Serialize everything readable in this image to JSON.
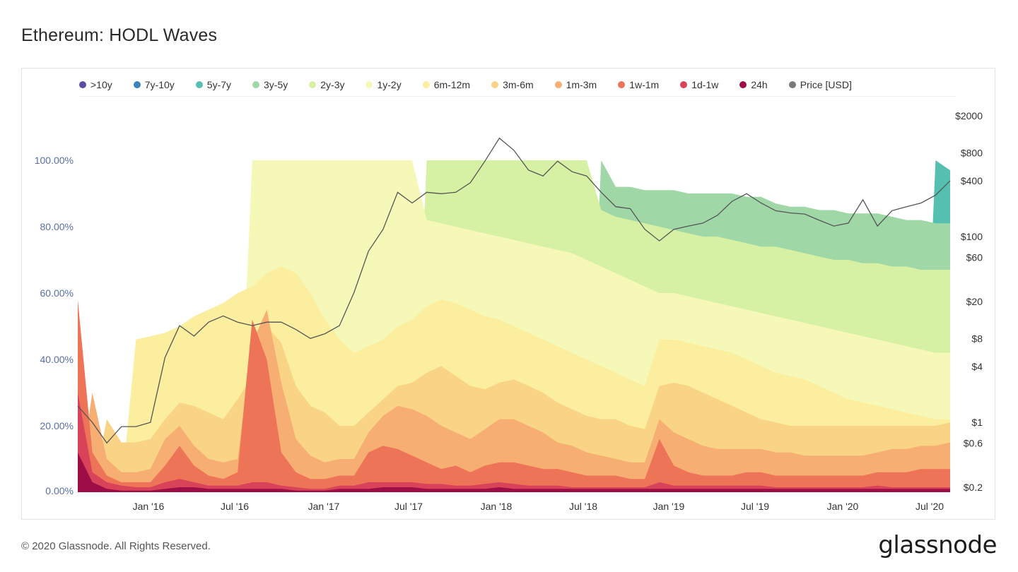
{
  "page": {
    "title": "Ethereum: HODL Waves",
    "copyright": "© 2020 Glassnode. All Rights Reserved.",
    "logo_text": "glassnode",
    "watermark": "glassnode"
  },
  "legend": [
    {
      "label": ">10y",
      "color": "#5b4ea2"
    },
    {
      "label": "7y-10y",
      "color": "#3a82bd"
    },
    {
      "label": "5y-7y",
      "color": "#55c0b0"
    },
    {
      "label": "3y-5y",
      "color": "#9fd8a6"
    },
    {
      "label": "2y-3y",
      "color": "#d6f0a4"
    },
    {
      "label": "1y-2y",
      "color": "#f6f8b8"
    },
    {
      "label": "6m-12m",
      "color": "#fbee9e"
    },
    {
      "label": "3m-6m",
      "color": "#f9d386"
    },
    {
      "label": "1m-3m",
      "color": "#f7ae72"
    },
    {
      "label": "1w-1m",
      "color": "#ee7458"
    },
    {
      "label": "1d-1w",
      "color": "#d9435a"
    },
    {
      "label": "24h",
      "color": "#9e0e46"
    },
    {
      "label": "Price [USD]",
      "color": "#7a7a7a"
    }
  ],
  "chart_data": {
    "type": "area",
    "stacked": true,
    "normalized_percent": true,
    "x_ticks": [
      "Jan '16",
      "Jul '16",
      "Jan '17",
      "Jul '17",
      "Jan '18",
      "Jul '18",
      "Jan '19",
      "Jul '19",
      "Jan '20",
      "Jul '20"
    ],
    "y_left_ticks": [
      "0.00%",
      "20.00%",
      "40.00%",
      "60.00%",
      "80.00%",
      "100.00%"
    ],
    "y_right_ticks": [
      "$0.2",
      "$0.6",
      "$1",
      "$4",
      "$8",
      "$20",
      "$60",
      "$100",
      "$400",
      "$800",
      "$2000"
    ],
    "x": [
      "2015-08",
      "2015-09",
      "2015-10",
      "2015-11",
      "2015-12",
      "2016-01",
      "2016-02",
      "2016-03",
      "2016-04",
      "2016-05",
      "2016-06",
      "2016-07",
      "2016-08",
      "2016-09",
      "2016-10",
      "2016-11",
      "2016-12",
      "2017-01",
      "2017-02",
      "2017-03",
      "2017-04",
      "2017-05",
      "2017-06",
      "2017-07",
      "2017-08",
      "2017-09",
      "2017-10",
      "2017-11",
      "2017-12",
      "2018-01",
      "2018-02",
      "2018-03",
      "2018-04",
      "2018-05",
      "2018-06",
      "2018-07",
      "2018-08",
      "2018-09",
      "2018-10",
      "2018-11",
      "2018-12",
      "2019-01",
      "2019-02",
      "2019-03",
      "2019-04",
      "2019-05",
      "2019-06",
      "2019-07",
      "2019-08",
      "2019-09",
      "2019-10",
      "2019-11",
      "2019-12",
      "2020-01",
      "2020-02",
      "2020-03",
      "2020-04",
      "2020-05",
      "2020-06",
      "2020-07",
      "2020-08"
    ],
    "series": [
      {
        "name": "24h",
        "values": [
          12,
          3,
          1,
          0.5,
          0.5,
          0.5,
          1,
          1.5,
          1.5,
          1,
          1,
          1,
          1,
          1,
          1,
          0.5,
          0.5,
          0.5,
          1,
          1,
          1,
          1.5,
          1.5,
          1.5,
          1,
          1,
          1,
          1,
          1,
          1.5,
          1,
          1,
          1,
          1,
          1,
          1,
          1,
          1,
          1,
          1,
          1,
          1,
          1,
          1,
          1,
          1,
          1,
          1,
          1,
          1,
          1,
          1,
          1,
          1,
          1,
          1,
          1,
          1,
          1,
          1,
          1
        ]
      },
      {
        "name": "1d-1w",
        "values": [
          30,
          6,
          3,
          2,
          1.5,
          1.5,
          3,
          4,
          3,
          2,
          2,
          2,
          3,
          3,
          2,
          1.5,
          1,
          1,
          2,
          2,
          3,
          3,
          3,
          3,
          2.5,
          2.5,
          2,
          2,
          2.5,
          3,
          2.5,
          2,
          2,
          2,
          1.5,
          1.5,
          1.5,
          1.5,
          1.5,
          1.5,
          3,
          2,
          2,
          2,
          2,
          2,
          2,
          2,
          1.5,
          1.5,
          1.5,
          1.5,
          1.5,
          1.5,
          1.5,
          2,
          1.5,
          1.5,
          1.5,
          1.5,
          1.5
        ]
      },
      {
        "name": "1w-1m",
        "values": [
          58,
          12,
          5,
          3,
          3,
          3,
          8,
          14,
          8,
          5,
          4,
          6,
          52,
          40,
          12,
          6,
          4,
          4,
          5,
          5,
          12,
          14,
          13,
          11,
          9,
          7,
          8,
          6,
          8,
          9,
          9,
          8,
          7,
          7,
          6,
          5,
          5,
          5,
          4,
          4,
          16,
          8,
          6,
          5,
          5,
          5,
          6,
          6,
          5,
          5,
          5,
          5,
          5,
          5,
          5,
          6,
          6,
          6,
          7,
          7,
          7
        ]
      },
      {
        "name": "1m-3m",
        "values": [
          0,
          30,
          10,
          6,
          6,
          7,
          16,
          20,
          14,
          10,
          9,
          10,
          45,
          55,
          33,
          16,
          11,
          9,
          10,
          10,
          18,
          23,
          26,
          25,
          23,
          20,
          18,
          16,
          19,
          22,
          22,
          20,
          18,
          15,
          14,
          12,
          11,
          10,
          9,
          9,
          22,
          18,
          16,
          14,
          13,
          13,
          13,
          13,
          12,
          12,
          11,
          11,
          11,
          11,
          11,
          12,
          13,
          13,
          14,
          14,
          15
        ]
      },
      {
        "name": "3m-6m",
        "values": [
          0,
          0,
          22,
          15,
          15,
          16,
          22,
          27,
          26,
          24,
          22,
          28,
          35,
          50,
          45,
          32,
          26,
          24,
          20,
          20,
          24,
          28,
          32,
          33,
          36,
          38,
          35,
          32,
          31,
          33,
          34,
          32,
          30,
          27,
          25,
          23,
          22,
          22,
          20,
          19,
          32,
          33,
          32,
          30,
          28,
          26,
          24,
          22,
          21,
          20,
          20,
          20,
          20,
          20,
          20,
          20,
          20,
          20,
          20,
          20,
          21
        ]
      },
      {
        "name": "6m-12m",
        "values": [
          0,
          0,
          0,
          0,
          46,
          47,
          48,
          50,
          53,
          55,
          57,
          60,
          62,
          66,
          68,
          66,
          60,
          52,
          46,
          42,
          44,
          46,
          50,
          52,
          56,
          58,
          57,
          55,
          53,
          52,
          50,
          48,
          46,
          44,
          42,
          40,
          38,
          36,
          34,
          32,
          46,
          46,
          45,
          44,
          43,
          42,
          40,
          38,
          36,
          35,
          34,
          32,
          30,
          28,
          27,
          26,
          25,
          24,
          23,
          22,
          22
        ]
      },
      {
        "name": "1y-2y",
        "values": [
          0,
          0,
          0,
          0,
          0,
          0,
          0,
          0,
          0,
          0,
          0,
          0,
          100,
          100,
          100,
          100,
          100,
          100,
          100,
          100,
          100,
          100,
          100,
          100,
          82,
          81,
          80,
          79,
          78,
          77,
          76,
          75,
          74,
          73,
          72,
          70,
          68,
          66,
          64,
          62,
          60,
          60,
          59,
          58,
          57,
          56,
          55,
          54,
          53,
          52,
          51,
          50,
          49,
          48,
          47,
          46,
          45,
          44,
          43,
          42,
          42
        ]
      },
      {
        "name": "2y-3y",
        "values": [
          0,
          0,
          0,
          0,
          0,
          0,
          0,
          0,
          0,
          0,
          0,
          0,
          0,
          0,
          0,
          0,
          0,
          0,
          0,
          0,
          0,
          0,
          0,
          0,
          100,
          100,
          100,
          100,
          100,
          100,
          100,
          100,
          100,
          100,
          100,
          100,
          85,
          83,
          82,
          81,
          80,
          79,
          78,
          77,
          77,
          76,
          75,
          74,
          74,
          73,
          72,
          71,
          70,
          70,
          69,
          69,
          68,
          68,
          67,
          67,
          67
        ]
      },
      {
        "name": "3y-5y",
        "values": [
          0,
          0,
          0,
          0,
          0,
          0,
          0,
          0,
          0,
          0,
          0,
          0,
          0,
          0,
          0,
          0,
          0,
          0,
          0,
          0,
          0,
          0,
          0,
          0,
          0,
          0,
          0,
          0,
          0,
          0,
          0,
          0,
          0,
          0,
          0,
          0,
          100,
          92,
          92,
          91,
          91,
          91,
          90,
          90,
          90,
          90,
          89,
          89,
          87,
          86,
          86,
          85,
          85,
          84,
          84,
          84,
          83,
          82,
          82,
          81,
          81
        ]
      },
      {
        "name": "5y-7y",
        "values": [
          0,
          0,
          0,
          0,
          0,
          0,
          0,
          0,
          0,
          0,
          0,
          0,
          0,
          0,
          0,
          0,
          0,
          0,
          0,
          0,
          0,
          0,
          0,
          0,
          0,
          0,
          0,
          0,
          0,
          0,
          0,
          0,
          0,
          0,
          0,
          0,
          0,
          0,
          0,
          0,
          0,
          0,
          0,
          0,
          0,
          0,
          0,
          0,
          0,
          0,
          0,
          0,
          0,
          0,
          0,
          0,
          0,
          0,
          0,
          100,
          97
        ]
      },
      {
        "name": "Price [USD]",
        "values": [
          1.5,
          1.0,
          0.6,
          0.9,
          0.9,
          1.0,
          5.0,
          11,
          8.5,
          12,
          14,
          12,
          11,
          12,
          12,
          10,
          8,
          9,
          11,
          25,
          70,
          120,
          300,
          230,
          300,
          290,
          300,
          380,
          650,
          1150,
          850,
          520,
          450,
          650,
          500,
          450,
          300,
          210,
          200,
          120,
          90,
          120,
          130,
          140,
          170,
          240,
          290,
          230,
          190,
          180,
          175,
          150,
          130,
          140,
          250,
          130,
          190,
          210,
          230,
          280,
          400
        ]
      }
    ]
  }
}
